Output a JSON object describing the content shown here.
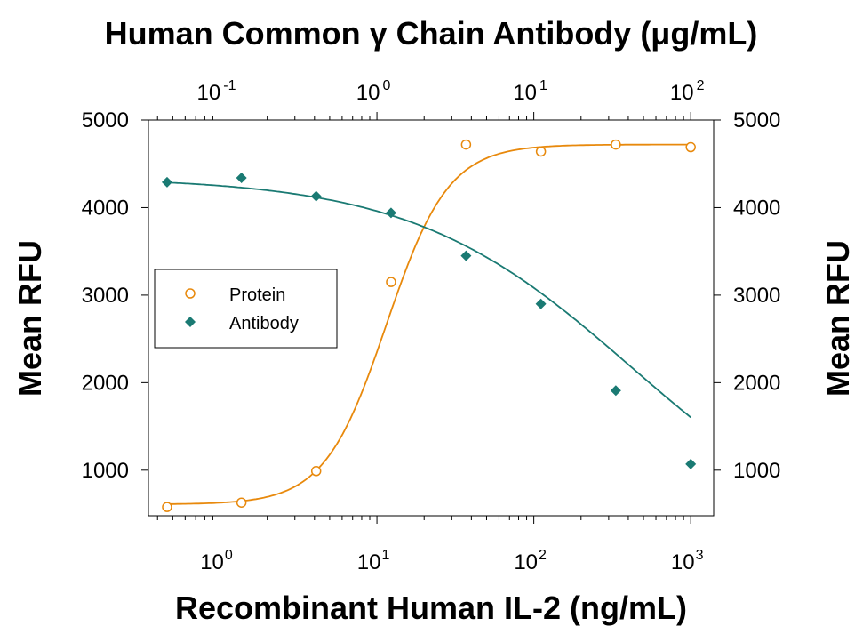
{
  "chart_data": {
    "type": "scatter",
    "title": "Human Common γ Chain Antibody (μg/mL)",
    "xlabel": "Recombinant Human IL-2 (ng/mL)",
    "ylabel": "Mean RFU",
    "ylabel_right": "Mean RFU",
    "x_scale": "log",
    "xlim": [
      0.35,
      1400
    ],
    "ylim": [
      480,
      5000
    ],
    "x_ticks": [
      {
        "value": 1,
        "base": "10",
        "exp": "0"
      },
      {
        "value": 10,
        "base": "10",
        "exp": "1"
      },
      {
        "value": 100,
        "base": "10",
        "exp": "2"
      },
      {
        "value": 1000,
        "base": "10",
        "exp": "3"
      }
    ],
    "top_xlim": [
      0.035,
      140
    ],
    "top_ticks": [
      {
        "value": 0.1,
        "base": "10",
        "exp": "-1"
      },
      {
        "value": 1,
        "base": "10",
        "exp": "0"
      },
      {
        "value": 10,
        "base": "10",
        "exp": "1"
      },
      {
        "value": 100,
        "base": "10",
        "exp": "2"
      }
    ],
    "y_ticks": [
      1000,
      2000,
      3000,
      4000,
      5000
    ],
    "y_ticks_right": [
      1000,
      2000,
      3000,
      4000,
      5000
    ],
    "legend_position": "middle-left",
    "series": [
      {
        "name": "Protein",
        "marker": "open-circle",
        "color": "#E8890C",
        "points": [
          [
            0.46,
            580
          ],
          [
            1.37,
            630
          ],
          [
            4.1,
            990
          ],
          [
            12.3,
            3150
          ],
          [
            37,
            4720
          ],
          [
            111,
            4640
          ],
          [
            333,
            4720
          ],
          [
            1000,
            4690
          ]
        ],
        "fit": {
          "bottom": 610,
          "top": 4720,
          "ec50": 11.5,
          "hill": 2.2
        }
      },
      {
        "name": "Antibody",
        "marker": "filled-diamond",
        "color": "#1A7A73",
        "points": [
          [
            0.46,
            4290
          ],
          [
            1.37,
            4340
          ],
          [
            4.1,
            4130
          ],
          [
            12.3,
            3940
          ],
          [
            37,
            3450
          ],
          [
            111,
            2900
          ],
          [
            333,
            1910
          ],
          [
            1000,
            1070
          ]
        ],
        "fit": {
          "bottom": 0,
          "top": 4350,
          "ec50": 420,
          "hill": 0.62
        }
      }
    ]
  }
}
